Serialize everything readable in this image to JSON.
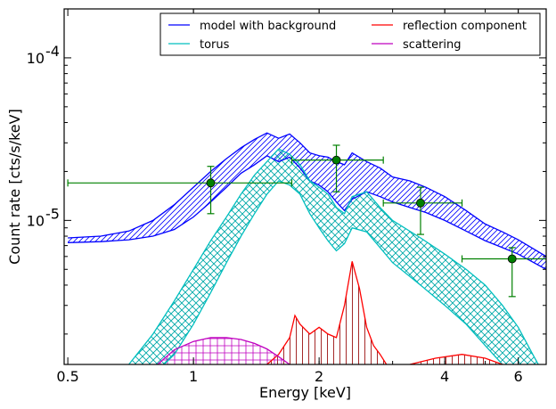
{
  "chart_data": {
    "type": "line",
    "xlabel": "Energy [keV]",
    "ylabel": "Count rate [cts/s/keV]",
    "xscale": "log",
    "yscale": "log",
    "xlim": [
      0.49,
      7.0
    ],
    "ylim": [
      1.3e-06,
      0.0002
    ],
    "x_ticks": [
      {
        "value": 0.5,
        "label": "0.5"
      },
      {
        "value": 1,
        "label": "1"
      },
      {
        "value": 2,
        "label": "2"
      },
      {
        "value": 4,
        "label": "4"
      },
      {
        "value": 6,
        "label": "6"
      }
    ],
    "y_ticks": [
      {
        "value": 1e-05,
        "label": "10^-5",
        "base": "10",
        "exp": "-5"
      },
      {
        "value": 0.0001,
        "label": "10^-4",
        "base": "10",
        "exp": "-4"
      }
    ],
    "legend": {
      "placement": "top-right",
      "columns": 2,
      "entries": [
        {
          "label": "model with background",
          "color": "#0000ff"
        },
        {
          "label": "torus",
          "color": "#00bfbf"
        },
        {
          "label": "reflection component",
          "color": "#ff0000"
        },
        {
          "label": "scattering",
          "color": "#bf00bf"
        }
      ]
    },
    "series": [
      {
        "name": "model with background",
        "color": "#0000ff",
        "hatch": "diagonal",
        "upper": [
          [
            0.5,
            7.8e-06
          ],
          [
            0.6,
            8e-06
          ],
          [
            0.7,
            8.6e-06
          ],
          [
            0.8,
            1e-05
          ],
          [
            0.9,
            1.25e-05
          ],
          [
            1.0,
            1.6e-05
          ],
          [
            1.1,
            2e-05
          ],
          [
            1.2,
            2.4e-05
          ],
          [
            1.3,
            2.8e-05
          ],
          [
            1.4,
            3.15e-05
          ],
          [
            1.5,
            3.45e-05
          ],
          [
            1.6,
            3.2e-05
          ],
          [
            1.7,
            3.4e-05
          ],
          [
            1.8,
            3e-05
          ],
          [
            1.9,
            2.6e-05
          ],
          [
            2.0,
            2.5e-05
          ],
          [
            2.1,
            2.45e-05
          ],
          [
            2.2,
            2.3e-05
          ],
          [
            2.3,
            2.2e-05
          ],
          [
            2.4,
            2.6e-05
          ],
          [
            2.6,
            2.3e-05
          ],
          [
            2.8,
            2.1e-05
          ],
          [
            3.0,
            1.85e-05
          ],
          [
            3.3,
            1.75e-05
          ],
          [
            3.6,
            1.6e-05
          ],
          [
            4.0,
            1.4e-05
          ],
          [
            4.5,
            1.15e-05
          ],
          [
            5.0,
            9.5e-06
          ],
          [
            5.5,
            8.5e-06
          ],
          [
            6.0,
            7.6e-06
          ],
          [
            7.0,
            6e-06
          ]
        ],
        "lower": [
          [
            0.5,
            7.3e-06
          ],
          [
            0.6,
            7.4e-06
          ],
          [
            0.7,
            7.6e-06
          ],
          [
            0.8,
            8e-06
          ],
          [
            0.9,
            8.8e-06
          ],
          [
            1.0,
            1.05e-05
          ],
          [
            1.1,
            1.3e-05
          ],
          [
            1.2,
            1.6e-05
          ],
          [
            1.3,
            1.95e-05
          ],
          [
            1.4,
            2.2e-05
          ],
          [
            1.5,
            2.5e-05
          ],
          [
            1.6,
            2.3e-05
          ],
          [
            1.7,
            2.45e-05
          ],
          [
            1.8,
            2.1e-05
          ],
          [
            1.9,
            1.75e-05
          ],
          [
            2.0,
            1.65e-05
          ],
          [
            2.1,
            1.5e-05
          ],
          [
            2.2,
            1.3e-05
          ],
          [
            2.3,
            1.15e-05
          ],
          [
            2.4,
            1.35e-05
          ],
          [
            2.6,
            1.5e-05
          ],
          [
            2.8,
            1.4e-05
          ],
          [
            3.0,
            1.3e-05
          ],
          [
            3.3,
            1.2e-05
          ],
          [
            3.6,
            1.12e-05
          ],
          [
            4.0,
            1e-05
          ],
          [
            4.5,
            8.6e-06
          ],
          [
            5.0,
            7.5e-06
          ],
          [
            5.5,
            6.8e-06
          ],
          [
            6.0,
            6.2e-06
          ],
          [
            7.0,
            5e-06
          ]
        ]
      },
      {
        "name": "torus",
        "color": "#00bfbf",
        "hatch": "crosshatch",
        "upper": [
          [
            0.7,
            1.3e-06
          ],
          [
            0.8,
            2e-06
          ],
          [
            0.9,
            3.2e-06
          ],
          [
            1.0,
            5e-06
          ],
          [
            1.1,
            7.5e-06
          ],
          [
            1.2,
            1.05e-05
          ],
          [
            1.3,
            1.45e-05
          ],
          [
            1.4,
            1.9e-05
          ],
          [
            1.5,
            2.3e-05
          ],
          [
            1.6,
            2.75e-05
          ],
          [
            1.7,
            2.55e-05
          ],
          [
            1.8,
            2.2e-05
          ],
          [
            1.9,
            1.75e-05
          ],
          [
            2.0,
            1.6e-05
          ],
          [
            2.1,
            1.45e-05
          ],
          [
            2.2,
            1.2e-05
          ],
          [
            2.3,
            1.1e-05
          ],
          [
            2.4,
            1.4e-05
          ],
          [
            2.6,
            1.5e-05
          ],
          [
            2.8,
            1.2e-05
          ],
          [
            3.0,
            1e-05
          ],
          [
            3.5,
            7.8e-06
          ],
          [
            4.0,
            6.2e-06
          ],
          [
            4.5,
            5e-06
          ],
          [
            5.0,
            4e-06
          ],
          [
            5.5,
            3e-06
          ],
          [
            6.0,
            2.2e-06
          ],
          [
            6.5,
            1.5e-06
          ],
          [
            6.7,
            1.3e-06
          ]
        ],
        "lower": [
          [
            0.85,
            1.3e-06
          ],
          [
            0.9,
            1.5e-06
          ],
          [
            1.0,
            2.3e-06
          ],
          [
            1.1,
            3.6e-06
          ],
          [
            1.2,
            5.5e-06
          ],
          [
            1.3,
            8e-06
          ],
          [
            1.4,
            1.1e-05
          ],
          [
            1.5,
            1.45e-05
          ],
          [
            1.6,
            1.75e-05
          ],
          [
            1.7,
            1.65e-05
          ],
          [
            1.8,
            1.45e-05
          ],
          [
            1.9,
            1.1e-05
          ],
          [
            2.0,
            9e-06
          ],
          [
            2.1,
            7.5e-06
          ],
          [
            2.2,
            6.5e-06
          ],
          [
            2.3,
            7.2e-06
          ],
          [
            2.4,
            9e-06
          ],
          [
            2.6,
            8.5e-06
          ],
          [
            2.8,
            6.8e-06
          ],
          [
            3.0,
            5.5e-06
          ],
          [
            3.5,
            4e-06
          ],
          [
            4.0,
            3e-06
          ],
          [
            4.5,
            2.3e-06
          ],
          [
            5.0,
            1.7e-06
          ],
          [
            5.5,
            1.3e-06
          ]
        ]
      },
      {
        "name": "reflection component",
        "color": "#ff0000",
        "hatch": "vertical",
        "upper": [
          [
            1.5,
            1.3e-06
          ],
          [
            1.6,
            1.5e-06
          ],
          [
            1.7,
            1.9e-06
          ],
          [
            1.75,
            2.6e-06
          ],
          [
            1.8,
            2.3e-06
          ],
          [
            1.9,
            2e-06
          ],
          [
            2.0,
            2.2e-06
          ],
          [
            2.1,
            2e-06
          ],
          [
            2.2,
            1.9e-06
          ],
          [
            2.3,
            3e-06
          ],
          [
            2.4,
            5.6e-06
          ],
          [
            2.5,
            3.8e-06
          ],
          [
            2.6,
            2.2e-06
          ],
          [
            2.7,
            1.7e-06
          ],
          [
            2.8,
            1.5e-06
          ],
          [
            2.9,
            1.3e-06
          ]
        ],
        "lower": [
          [
            1.5,
            1.3e-06
          ],
          [
            2.9,
            1.3e-06
          ]
        ],
        "upper_2": [
          [
            3.3,
            1.3e-06
          ],
          [
            3.8,
            1.42e-06
          ],
          [
            4.4,
            1.5e-06
          ],
          [
            5.0,
            1.42e-06
          ],
          [
            5.5,
            1.3e-06
          ]
        ]
      },
      {
        "name": "scattering",
        "color": "#bf00bf",
        "hatch": "grid",
        "upper": [
          [
            0.82,
            1.3e-06
          ],
          [
            0.9,
            1.6e-06
          ],
          [
            1.0,
            1.8e-06
          ],
          [
            1.1,
            1.9e-06
          ],
          [
            1.2,
            1.9e-06
          ],
          [
            1.3,
            1.85e-06
          ],
          [
            1.4,
            1.75e-06
          ],
          [
            1.5,
            1.62e-06
          ],
          [
            1.6,
            1.45e-06
          ],
          [
            1.7,
            1.3e-06
          ]
        ],
        "lower": [
          [
            0.9,
            1.3e-06
          ],
          [
            1.6,
            1.3e-06
          ]
        ]
      }
    ],
    "data_points": {
      "color": "#008000",
      "points": [
        {
          "x": 1.1,
          "y": 1.7e-05,
          "xerr": [
            0.5,
            1.72
          ],
          "yerr": [
            1.1e-05,
            2.15e-05
          ]
        },
        {
          "x": 2.2,
          "y": 2.35e-05,
          "xerr": [
            1.72,
            2.85
          ],
          "yerr": [
            1.5e-05,
            2.9e-05
          ]
        },
        {
          "x": 3.5,
          "y": 1.28e-05,
          "xerr": [
            2.85,
            4.4
          ],
          "yerr": [
            8.2e-06,
            1.6e-05
          ]
        },
        {
          "x": 5.8,
          "y": 5.8e-06,
          "xerr": [
            4.4,
            7.0
          ],
          "yerr": [
            3.4e-06,
            6.8e-06
          ]
        }
      ]
    }
  }
}
